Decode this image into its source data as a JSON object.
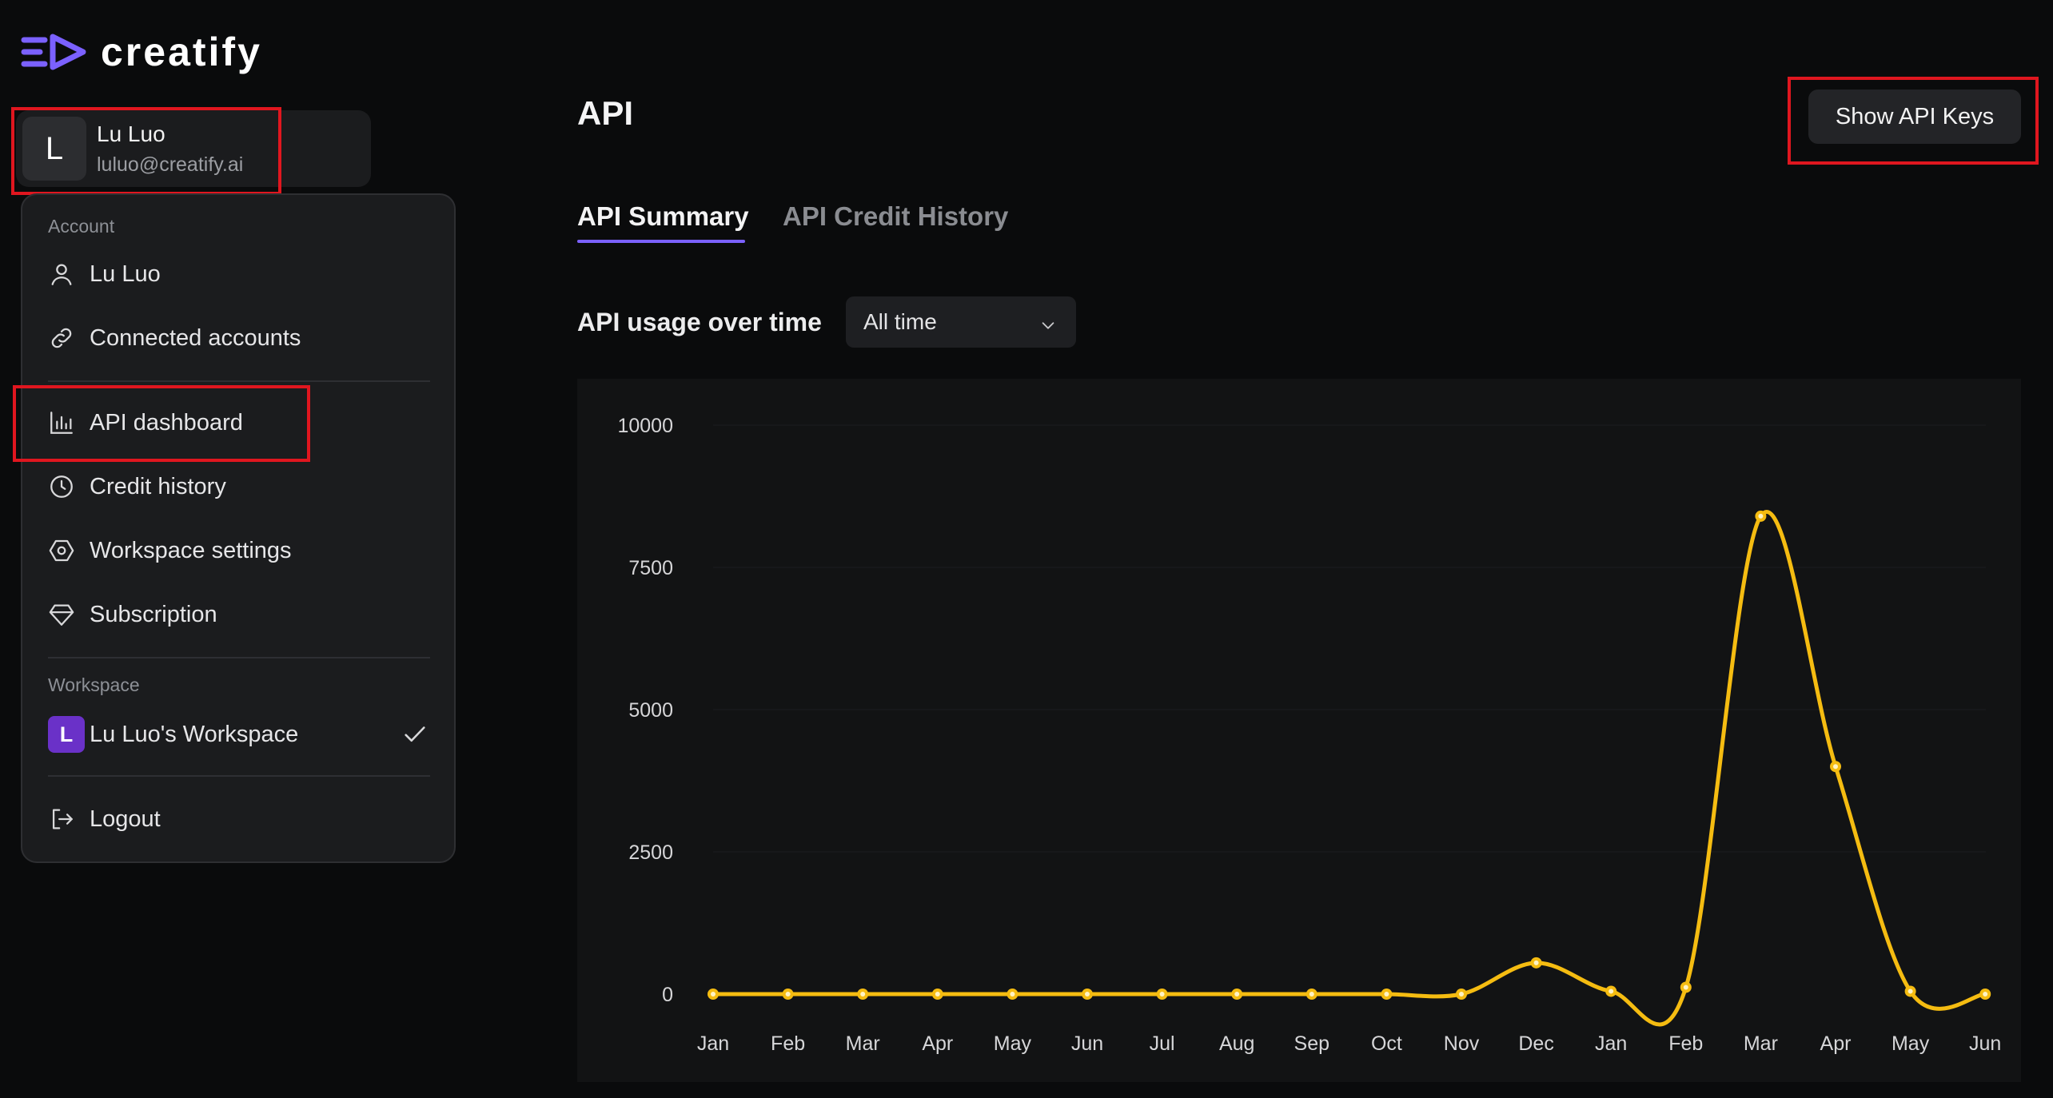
{
  "brand": {
    "name": "creatify",
    "accent": "#7b61ff"
  },
  "user": {
    "initial": "L",
    "name": "Lu Luo",
    "email": "luluo@creatify.ai"
  },
  "menu": {
    "account_section": "Account",
    "items": [
      {
        "label": "Lu Luo",
        "icon": "person-icon"
      },
      {
        "label": "Connected accounts",
        "icon": "link-icon"
      },
      {
        "label": "API dashboard",
        "icon": "bar-chart-icon"
      },
      {
        "label": "Credit history",
        "icon": "clock-icon"
      },
      {
        "label": "Workspace settings",
        "icon": "hexagon-settings-icon"
      },
      {
        "label": "Subscription",
        "icon": "diamond-icon"
      }
    ],
    "workspace_section": "Workspace",
    "workspace": {
      "initial": "L",
      "label": "Lu Luo's Workspace",
      "selected": true
    },
    "logout": "Logout"
  },
  "main": {
    "title": "API",
    "show_keys": "Show API Keys",
    "tabs": [
      {
        "label": "API Summary",
        "active": true
      },
      {
        "label": "API Credit History",
        "active": false
      }
    ],
    "usage_label": "API usage over time",
    "range": {
      "selected": "All time"
    }
  },
  "chart_data": {
    "type": "line",
    "title": "",
    "xlabel": "",
    "ylabel": "",
    "categories": [
      "Jan",
      "Feb",
      "Mar",
      "Apr",
      "May",
      "Jun",
      "Jul",
      "Aug",
      "Sep",
      "Oct",
      "Nov",
      "Dec",
      "Jan",
      "Feb",
      "Mar",
      "Apr",
      "May",
      "Jun"
    ],
    "values": [
      0,
      0,
      0,
      0,
      0,
      0,
      0,
      0,
      0,
      0,
      0,
      550,
      50,
      120,
      8400,
      4000,
      50,
      0
    ],
    "ylim": [
      0,
      10000
    ],
    "yticks": [
      0,
      2500,
      5000,
      7500,
      10000
    ],
    "line_color": "#f5bc11",
    "grid": true
  }
}
